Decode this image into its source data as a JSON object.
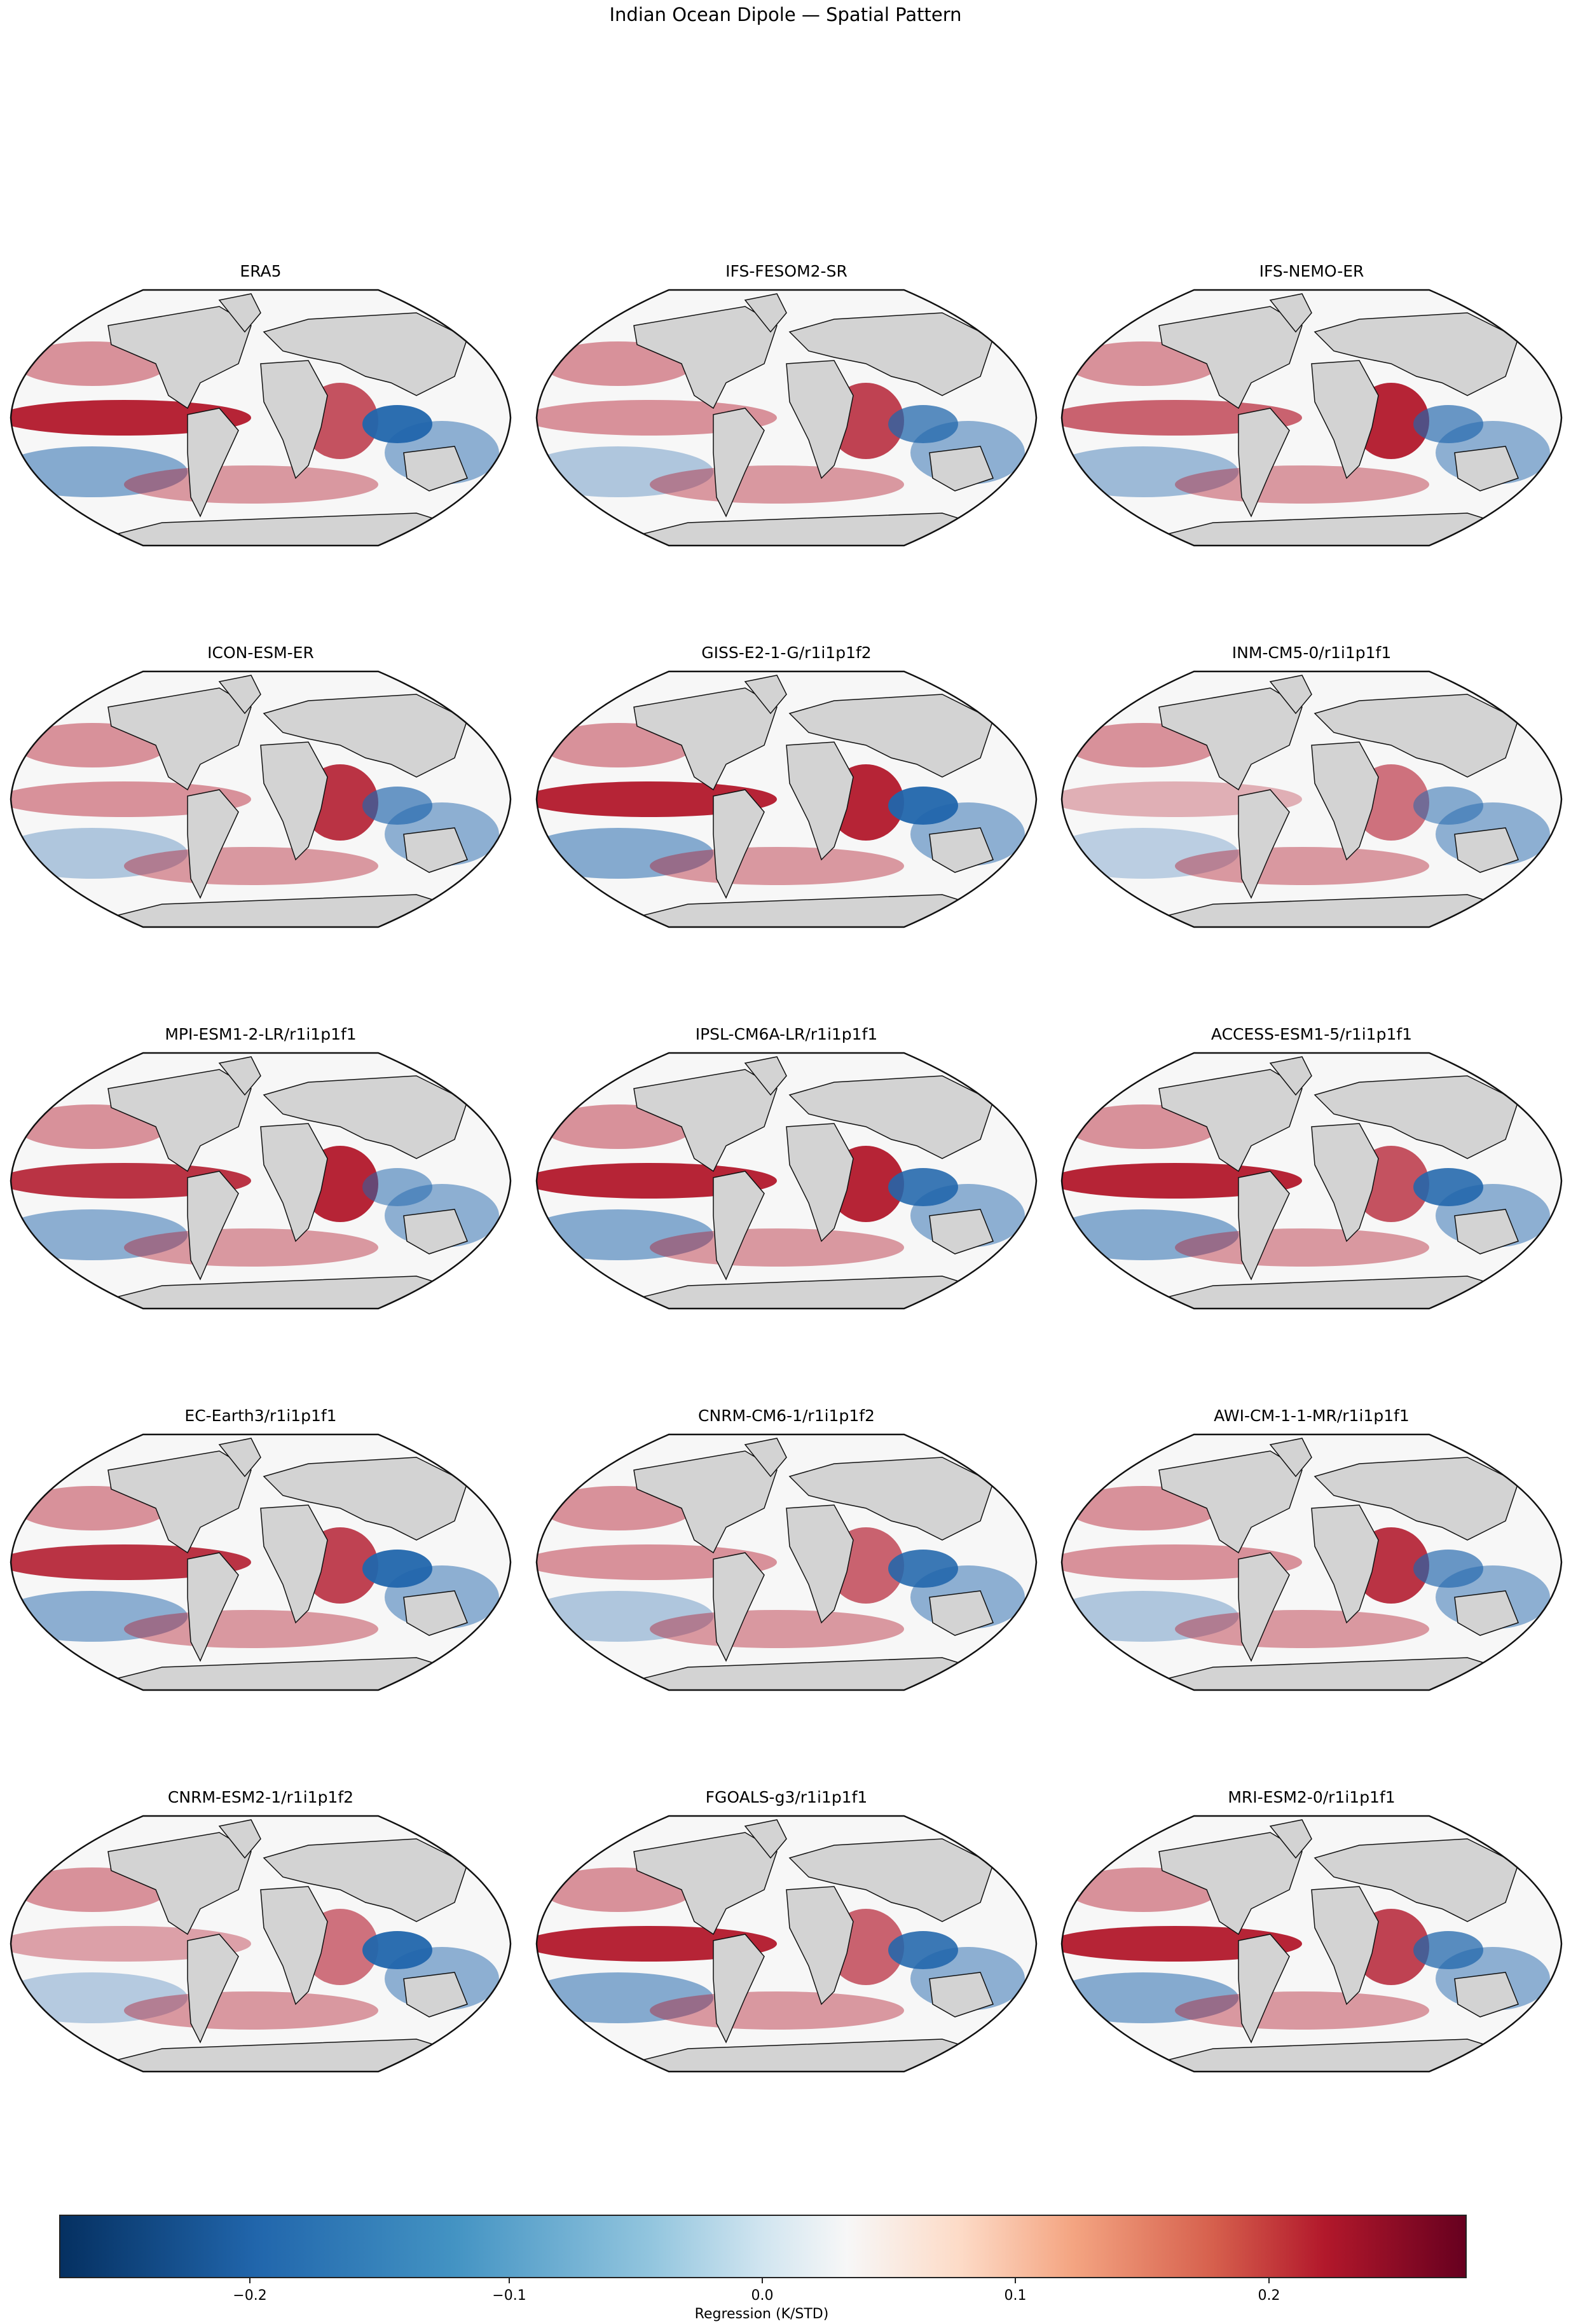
{
  "figure": {
    "title": "Indian Ocean Dipole — Spatial Pattern",
    "colorbar": {
      "label": "Regression (K/STD)",
      "ticks": [
        "−0.2",
        "−0.1",
        "0.0",
        "0.1",
        "0.2"
      ],
      "colormap": "RdBu_r",
      "colors": {
        "min": "#053061",
        "mid": "#f7f7f7",
        "max": "#67001f",
        "land": "#d3d3d3"
      }
    }
  },
  "panels": [
    {
      "title": "ERA5"
    },
    {
      "title": "IFS-FESOM2-SR"
    },
    {
      "title": "IFS-NEMO-ER"
    },
    {
      "title": "ICON-ESM-ER"
    },
    {
      "title": "GISS-E2-1-G/r1i1p1f2"
    },
    {
      "title": "INM-CM5-0/r1i1p1f1"
    },
    {
      "title": "MPI-ESM1-2-LR/r1i1p1f1"
    },
    {
      "title": "IPSL-CM6A-LR/r1i1p1f1"
    },
    {
      "title": "ACCESS-ESM1-5/r1i1p1f1"
    },
    {
      "title": "EC-Earth3/r1i1p1f1"
    },
    {
      "title": "CNRM-CM6-1/r1i1p1f2"
    },
    {
      "title": "AWI-CM-1-1-MR/r1i1p1f1"
    },
    {
      "title": "CNRM-ESM2-1/r1i1p1f2"
    },
    {
      "title": "FGOALS-g3/r1i1p1f1"
    },
    {
      "title": "MRI-ESM2-0/r1i1p1f1"
    }
  ],
  "chart_data": {
    "type": "heatmap",
    "title": "Indian Ocean Dipole — Spatial Pattern",
    "subplots": [
      "ERA5",
      "IFS-FESOM2-SR",
      "IFS-NEMO-ER",
      "ICON-ESM-ER",
      "GISS-E2-1-G/r1i1p1f2",
      "INM-CM5-0/r1i1p1f1",
      "MPI-ESM1-2-LR/r1i1p1f1",
      "IPSL-CM6A-LR/r1i1p1f1",
      "ACCESS-ESM1-5/r1i1p1f1",
      "EC-Earth3/r1i1p1f1",
      "CNRM-CM6-1/r1i1p1f2",
      "AWI-CM-1-1-MR/r1i1p1f1",
      "CNRM-ESM2-1/r1i1p1f2",
      "FGOALS-g3/r1i1p1f1",
      "MRI-ESM2-0/r1i1p1f1"
    ],
    "layout": {
      "rows": 5,
      "cols": 3
    },
    "projection": "Robinson (global)",
    "colorbar_label": "Regression (K/STD)",
    "colorbar_ticks": [
      -0.2,
      -0.1,
      0.0,
      0.1,
      0.2
    ],
    "vmin": -0.28,
    "vmax": 0.28,
    "colormap": "RdBu_r",
    "pattern_notes": {
      "western_indian_ocean": "positive (red) in all panels",
      "eastern_indian_ocean_near_sumatra_java": "negative (blue) in most panels",
      "equatorial_east_pacific": "strong positive in ERA5, GISS, IPSL, ACCESS, MPI, EC-Earth3, FGOALS, MRI"
    }
  }
}
